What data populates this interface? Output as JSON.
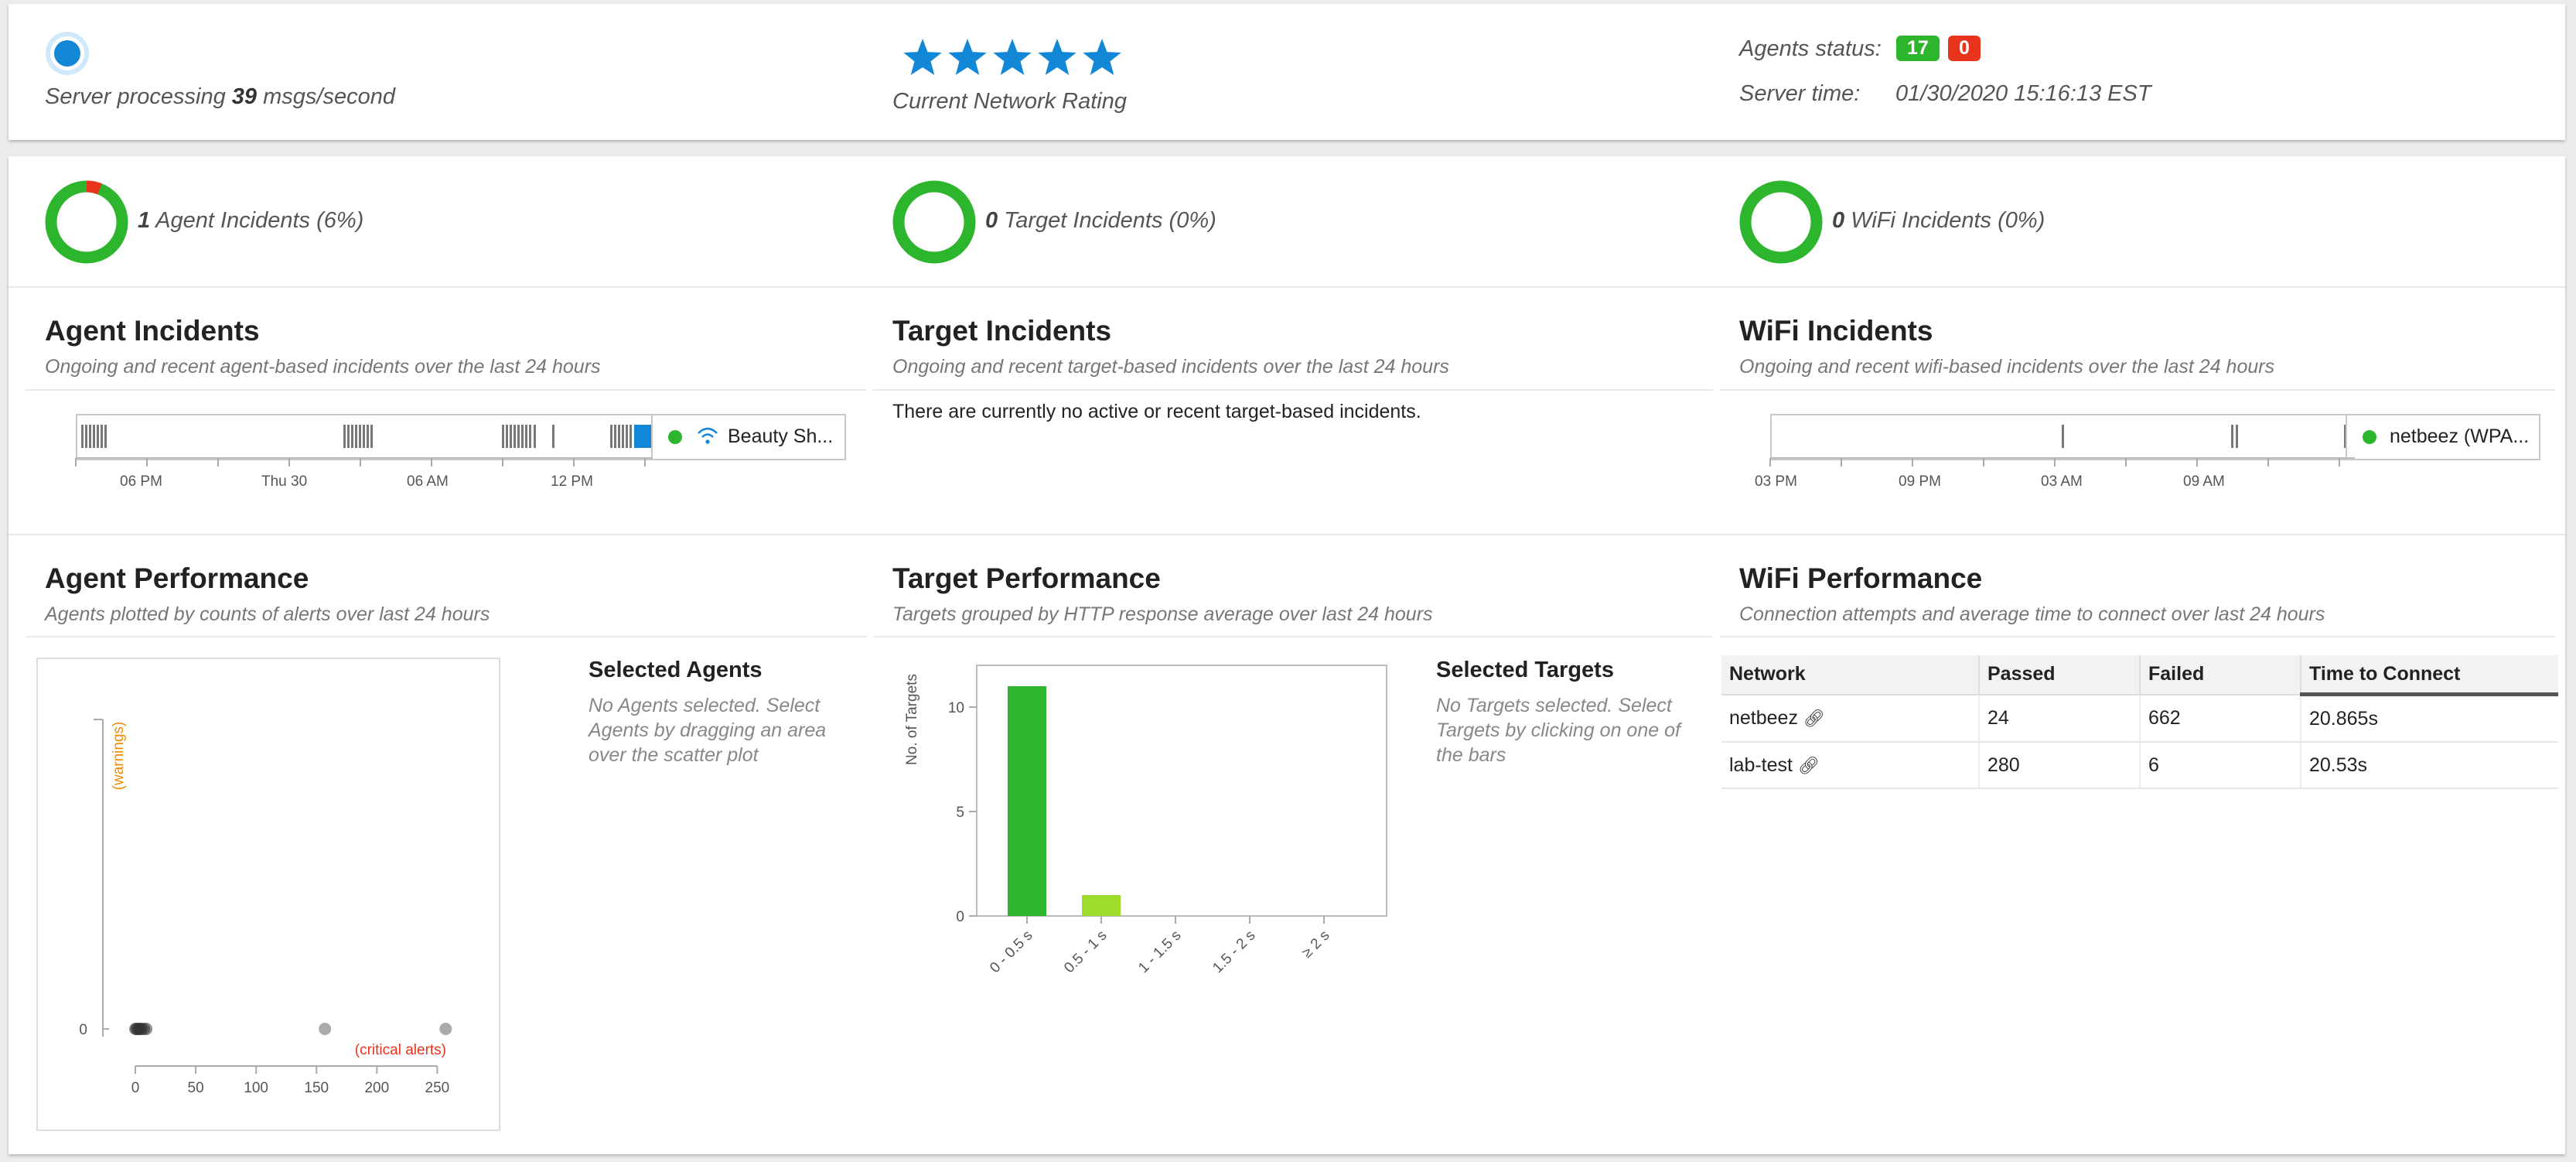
{
  "header": {
    "server_processing_prefix": "Server processing",
    "msgs_per_second": "39",
    "server_processing_suffix": "msgs/second",
    "network_rating_label": "Current Network Rating",
    "network_rating_stars": 5,
    "agents_status_label": "Agents status:",
    "agents_ok_count": "17",
    "agents_fail_count": "0",
    "server_time_label": "Server time:",
    "server_time_value": "01/30/2020 15:16:13 EST"
  },
  "summary": {
    "agent": {
      "count": "1",
      "label": "Agent Incidents (6%)",
      "fraction": 0.06
    },
    "target": {
      "count": "0",
      "label": "Target Incidents (0%)",
      "fraction": 0
    },
    "wifi": {
      "count": "0",
      "label": "WiFi Incidents (0%)",
      "fraction": 0
    }
  },
  "agent_incidents": {
    "title": "Agent Incidents",
    "subtitle": "Ongoing and recent agent-based incidents over the last 24 hours",
    "ticks": [
      "06 PM",
      "Thu 30",
      "06 AM",
      "12 PM"
    ],
    "legend_label": "Beauty Sh..."
  },
  "target_incidents": {
    "title": "Target Incidents",
    "subtitle": "Ongoing and recent target-based incidents over the last 24 hours",
    "empty_message": "There are currently no active or recent target-based incidents."
  },
  "wifi_incidents": {
    "title": "WiFi Incidents",
    "subtitle": "Ongoing and recent wifi-based incidents over the last 24 hours",
    "ticks": [
      "03 PM",
      "09 PM",
      "03 AM",
      "09 AM"
    ],
    "legend_label": "netbeez (WPA..."
  },
  "agent_performance": {
    "title": "Agent Performance",
    "subtitle": "Agents plotted by counts of alerts over last 24 hours",
    "selected_title": "Selected Agents",
    "selected_text": "No Agents selected. Select Agents by dragging an area over the scatter plot"
  },
  "target_performance": {
    "title": "Target Performance",
    "subtitle": "Targets grouped by HTTP response average over last 24 hours",
    "selected_title": "Selected Targets",
    "selected_text": "No Targets selected. Select Targets by clicking on one of the bars"
  },
  "wifi_performance": {
    "title": "WiFi Performance",
    "subtitle": "Connection attempts and average time to connect over last 24 hours",
    "columns": [
      "Network",
      "Passed",
      "Failed",
      "Time to Connect"
    ],
    "rows": [
      {
        "network": "netbeez",
        "passed": "24",
        "failed": "662",
        "time": "20.865s"
      },
      {
        "network": "lab-test",
        "passed": "280",
        "failed": "6",
        "time": "20.53s"
      }
    ]
  },
  "colors": {
    "green": "#2db52d",
    "red": "#e8341c",
    "blue": "#1187d6",
    "lime": "#9ddc2a",
    "orange": "#f08a00"
  },
  "chart_data": [
    {
      "type": "scatter",
      "xlabel": "(critical alerts)",
      "ylabel": "(warnings)",
      "x_ticks": [
        0,
        50,
        100,
        150,
        200,
        250
      ],
      "y_ticks": [
        0
      ],
      "xlim": [
        0,
        260
      ],
      "points": [
        {
          "x": 0,
          "y": 0
        },
        {
          "x": 1,
          "y": 0
        },
        {
          "x": 2,
          "y": 0
        },
        {
          "x": 3,
          "y": 0
        },
        {
          "x": 4,
          "y": 0
        },
        {
          "x": 5,
          "y": 0
        },
        {
          "x": 7,
          "y": 0
        },
        {
          "x": 9,
          "y": 0
        },
        {
          "x": 157,
          "y": 0
        },
        {
          "x": 257,
          "y": 0
        }
      ]
    },
    {
      "type": "bar",
      "ylabel": "No. of Targets",
      "categories": [
        "0 - 0.5 s",
        "0.5 - 1 s",
        "1 - 1.5 s",
        "1.5 - 2 s",
        "≥ 2 s"
      ],
      "values": [
        11,
        1,
        0,
        0,
        0
      ],
      "y_ticks": [
        0,
        5,
        10
      ],
      "ylim": [
        0,
        12
      ]
    }
  ]
}
